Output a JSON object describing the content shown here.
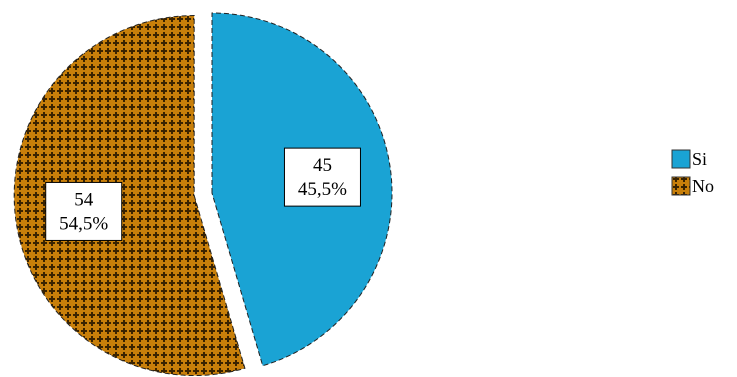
{
  "chart_data": {
    "type": "pie",
    "slices": [
      {
        "name": "Si",
        "value": 45,
        "percent_label": "45,5%",
        "color": "#1aa3d4",
        "pattern": "solid",
        "exploded": false
      },
      {
        "name": "No",
        "value": 54,
        "percent_label": "54,5%",
        "color": "#c87f0a",
        "pattern": "cross-hatch",
        "exploded": true
      }
    ],
    "pattern_dot_color": "#3a2300",
    "slice_outline": "dashed",
    "legend": {
      "position": "right",
      "entries": [
        "Si",
        "No"
      ]
    },
    "data_labels": "value and percent"
  }
}
